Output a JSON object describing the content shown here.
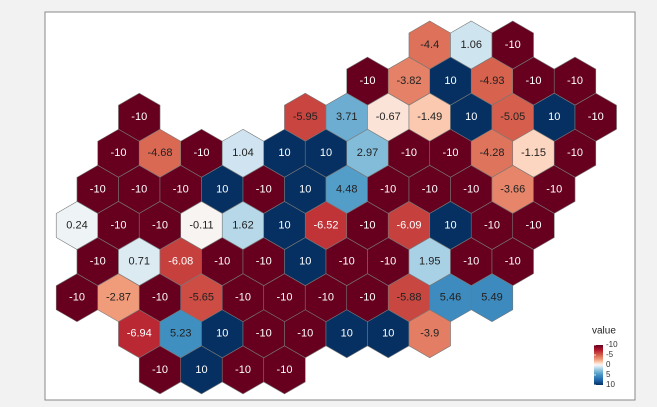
{
  "chart_data": {
    "type": "hexmap",
    "clim": [
      -10,
      10
    ],
    "colors": [
      {
        "value": -10,
        "color": "#67001f"
      },
      {
        "value": -7.5,
        "color": "#b2182b"
      },
      {
        "value": -5,
        "color": "#d6604d"
      },
      {
        "value": -2.5,
        "color": "#f4a582"
      },
      {
        "value": -1,
        "color": "#fddbc7"
      },
      {
        "value": 0,
        "color": "#f7f7f7"
      },
      {
        "value": 1,
        "color": "#d1e5f0"
      },
      {
        "value": 2.5,
        "color": "#92c5de"
      },
      {
        "value": 5,
        "color": "#4393c3"
      },
      {
        "value": 7.5,
        "color": "#2166ac"
      },
      {
        "value": 10,
        "color": "#053061"
      }
    ],
    "legend": {
      "title": "value",
      "ticks": [
        -10,
        -5,
        0,
        5,
        10
      ]
    },
    "hexes": [
      {
        "col": 17,
        "row": 0,
        "value": -4.4
      },
      {
        "col": 19,
        "row": 0,
        "value": 1.06
      },
      {
        "col": 21,
        "row": 0,
        "value": -10
      },
      {
        "col": 14,
        "row": 1,
        "value": -10
      },
      {
        "col": 16,
        "row": 1,
        "value": -3.82
      },
      {
        "col": 18,
        "row": 1,
        "value": 10
      },
      {
        "col": 20,
        "row": 1,
        "value": -4.93
      },
      {
        "col": 22,
        "row": 1,
        "value": -10
      },
      {
        "col": 24,
        "row": 1,
        "value": -10
      },
      {
        "col": 3,
        "row": 2,
        "value": -10
      },
      {
        "col": 11,
        "row": 2,
        "value": -5.95
      },
      {
        "col": 13,
        "row": 2,
        "value": 3.71
      },
      {
        "col": 15,
        "row": 2,
        "value": -0.67
      },
      {
        "col": 17,
        "row": 2,
        "value": -1.49
      },
      {
        "col": 19,
        "row": 2,
        "value": 10
      },
      {
        "col": 21,
        "row": 2,
        "value": -5.05
      },
      {
        "col": 23,
        "row": 2,
        "value": 10
      },
      {
        "col": 25,
        "row": 2,
        "value": -10
      },
      {
        "col": 2,
        "row": 3,
        "value": -10
      },
      {
        "col": 4,
        "row": 3,
        "value": -4.68
      },
      {
        "col": 6,
        "row": 3,
        "value": -10
      },
      {
        "col": 8,
        "row": 3,
        "value": 1.04
      },
      {
        "col": 10,
        "row": 3,
        "value": 10
      },
      {
        "col": 12,
        "row": 3,
        "value": 10
      },
      {
        "col": 14,
        "row": 3,
        "value": 2.97
      },
      {
        "col": 16,
        "row": 3,
        "value": -10
      },
      {
        "col": 18,
        "row": 3,
        "value": -10
      },
      {
        "col": 20,
        "row": 3,
        "value": -4.28
      },
      {
        "col": 22,
        "row": 3,
        "value": -1.15
      },
      {
        "col": 24,
        "row": 3,
        "value": -10
      },
      {
        "col": 1,
        "row": 4,
        "value": -10
      },
      {
        "col": 3,
        "row": 4,
        "value": -10
      },
      {
        "col": 5,
        "row": 4,
        "value": -10
      },
      {
        "col": 7,
        "row": 4,
        "value": 10
      },
      {
        "col": 9,
        "row": 4,
        "value": -10
      },
      {
        "col": 11,
        "row": 4,
        "value": 10
      },
      {
        "col": 13,
        "row": 4,
        "value": 4.48
      },
      {
        "col": 15,
        "row": 4,
        "value": -10
      },
      {
        "col": 17,
        "row": 4,
        "value": -10
      },
      {
        "col": 19,
        "row": 4,
        "value": -10
      },
      {
        "col": 21,
        "row": 4,
        "value": -3.66
      },
      {
        "col": 23,
        "row": 4,
        "value": -10
      },
      {
        "col": 0,
        "row": 5,
        "value": 0.24
      },
      {
        "col": 2,
        "row": 5,
        "value": -10
      },
      {
        "col": 4,
        "row": 5,
        "value": -10
      },
      {
        "col": 6,
        "row": 5,
        "value": -0.11
      },
      {
        "col": 8,
        "row": 5,
        "value": 1.62
      },
      {
        "col": 10,
        "row": 5,
        "value": 10
      },
      {
        "col": 12,
        "row": 5,
        "value": -6.52
      },
      {
        "col": 14,
        "row": 5,
        "value": -10
      },
      {
        "col": 16,
        "row": 5,
        "value": -6.09
      },
      {
        "col": 18,
        "row": 5,
        "value": 10
      },
      {
        "col": 20,
        "row": 5,
        "value": -10
      },
      {
        "col": 22,
        "row": 5,
        "value": -10
      },
      {
        "col": 1,
        "row": 6,
        "value": -10
      },
      {
        "col": 3,
        "row": 6,
        "value": 0.71
      },
      {
        "col": 5,
        "row": 6,
        "value": -6.08
      },
      {
        "col": 7,
        "row": 6,
        "value": -10
      },
      {
        "col": 9,
        "row": 6,
        "value": -10
      },
      {
        "col": 11,
        "row": 6,
        "value": 10
      },
      {
        "col": 13,
        "row": 6,
        "value": -10
      },
      {
        "col": 15,
        "row": 6,
        "value": -10
      },
      {
        "col": 17,
        "row": 6,
        "value": 1.95
      },
      {
        "col": 19,
        "row": 6,
        "value": -10
      },
      {
        "col": 21,
        "row": 6,
        "value": -10
      },
      {
        "col": 0,
        "row": 7,
        "value": -10
      },
      {
        "col": 2,
        "row": 7,
        "value": -2.87
      },
      {
        "col": 4,
        "row": 7,
        "value": -10
      },
      {
        "col": 6,
        "row": 7,
        "value": -5.65
      },
      {
        "col": 8,
        "row": 7,
        "value": -10
      },
      {
        "col": 10,
        "row": 7,
        "value": -10
      },
      {
        "col": 12,
        "row": 7,
        "value": -10
      },
      {
        "col": 14,
        "row": 7,
        "value": -10
      },
      {
        "col": 16,
        "row": 7,
        "value": -5.88
      },
      {
        "col": 18,
        "row": 7,
        "value": 5.46
      },
      {
        "col": 20,
        "row": 7,
        "value": 5.49
      },
      {
        "col": 3,
        "row": 8,
        "value": -6.94
      },
      {
        "col": 5,
        "row": 8,
        "value": 5.23
      },
      {
        "col": 7,
        "row": 8,
        "value": 10
      },
      {
        "col": 9,
        "row": 8,
        "value": -10
      },
      {
        "col": 11,
        "row": 8,
        "value": -10
      },
      {
        "col": 13,
        "row": 8,
        "value": 10
      },
      {
        "col": 15,
        "row": 8,
        "value": 10
      },
      {
        "col": 17,
        "row": 8,
        "value": -3.9
      },
      {
        "col": 4,
        "row": 9,
        "value": -10
      },
      {
        "col": 6,
        "row": 9,
        "value": 10
      },
      {
        "col": 8,
        "row": 9,
        "value": -10
      },
      {
        "col": 10,
        "row": 9,
        "value": -10
      }
    ]
  }
}
